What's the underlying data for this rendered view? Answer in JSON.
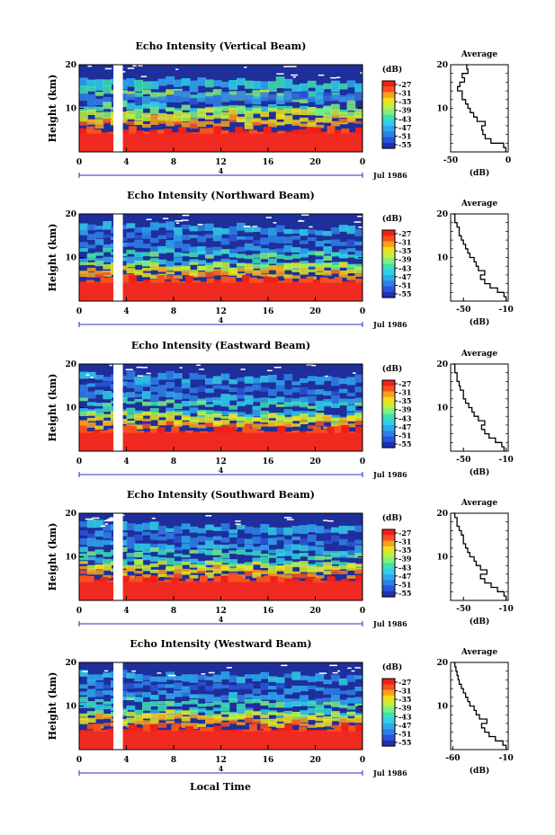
{
  "figure": {
    "x_label": "Local Time",
    "date_label": "Jul 1986",
    "date_marker": "4",
    "cbar_unit": "(dB)",
    "avg_title": "Average",
    "avg_xlabel": "(dB)",
    "height_label": "Height (km)"
  },
  "colors": {
    "scale": [
      "#2030b0",
      "#2a55d8",
      "#2f7fe8",
      "#30a8f0",
      "#30d0e8",
      "#40e0b0",
      "#80f080",
      "#c0f040",
      "#f0e020",
      "#f8a020",
      "#f85020",
      "#f02018"
    ],
    "background_high": "#1e2e9a",
    "surface_red": "#f02a20"
  },
  "chart_data": [
    {
      "type": "heatmap",
      "title": "Echo Intensity (Vertical Beam)",
      "xlabel": "Local Time",
      "ylabel": "Height (km)",
      "xlim": [
        0,
        24
      ],
      "ylim": [
        0,
        20
      ],
      "xticks": [
        "0",
        "4",
        "8",
        "12",
        "16",
        "20",
        "0"
      ],
      "yticks": [
        "10",
        "20"
      ],
      "colorbar": {
        "unit": "(dB)",
        "ticks": [
          "-27",
          "-31",
          "-35",
          "-39",
          "-43",
          "-47",
          "-51",
          "-55"
        ]
      },
      "data_gap_hours": [
        2.9,
        3.7
      ],
      "average_profile": {
        "xticks": [
          "-50",
          "0"
        ],
        "xlim": [
          -50,
          0
        ],
        "yticks": [
          "10",
          "20"
        ],
        "height_km": [
          0,
          1,
          2,
          3,
          4,
          5,
          6,
          7,
          8,
          9,
          10,
          11,
          12,
          13,
          14,
          15,
          16,
          17,
          18,
          19,
          20
        ],
        "db": [
          -2,
          -4,
          -15,
          -20,
          -22,
          -23,
          -20,
          -27,
          -30,
          -33,
          -35,
          -37,
          -40,
          -40,
          -44,
          -42,
          -38,
          -40,
          -35,
          -36,
          -35
        ]
      }
    },
    {
      "type": "heatmap",
      "title": "Echo Intensity (Northward Beam)",
      "xlabel": "Local Time",
      "ylabel": "Height (km)",
      "xlim": [
        0,
        24
      ],
      "ylim": [
        0,
        20
      ],
      "xticks": [
        "0",
        "4",
        "8",
        "12",
        "16",
        "20",
        "0"
      ],
      "yticks": [
        "10",
        "20"
      ],
      "colorbar": {
        "unit": "(dB)",
        "ticks": [
          "-27",
          "-31",
          "-35",
          "-39",
          "-43",
          "-47",
          "-51",
          "-55"
        ]
      },
      "data_gap_hours": [
        2.9,
        3.7
      ],
      "average_profile": {
        "xticks": [
          "-50",
          "-10"
        ],
        "xlim": [
          -62,
          -8
        ],
        "yticks": [
          "10",
          "20"
        ],
        "height_km": [
          0,
          1,
          2,
          3,
          4,
          5,
          6,
          7,
          8,
          9,
          10,
          11,
          12,
          13,
          14,
          15,
          16,
          17,
          18,
          19,
          20
        ],
        "db": [
          -10,
          -12,
          -18,
          -25,
          -30,
          -34,
          -30,
          -36,
          -38,
          -40,
          -44,
          -46,
          -48,
          -50,
          -52,
          -54,
          -54,
          -56,
          -58,
          -58,
          -60
        ]
      }
    },
    {
      "type": "heatmap",
      "title": "Echo Intensity (Eastward Beam)",
      "xlabel": "Local Time",
      "ylabel": "Height (km)",
      "xlim": [
        0,
        24
      ],
      "ylim": [
        0,
        20
      ],
      "xticks": [
        "0",
        "4",
        "8",
        "12",
        "16",
        "20",
        "0"
      ],
      "yticks": [
        "10",
        "20"
      ],
      "colorbar": {
        "unit": "(dB)",
        "ticks": [
          "-27",
          "-31",
          "-35",
          "-39",
          "-43",
          "-47",
          "-51",
          "-55"
        ]
      },
      "data_gap_hours": [
        2.9,
        3.7
      ],
      "average_profile": {
        "xticks": [
          "-50",
          "-10"
        ],
        "xlim": [
          -62,
          -8
        ],
        "yticks": [
          "10",
          "20"
        ],
        "height_km": [
          0,
          1,
          2,
          3,
          4,
          5,
          6,
          7,
          8,
          9,
          10,
          11,
          12,
          13,
          14,
          15,
          16,
          17,
          18,
          19,
          20
        ],
        "db": [
          -12,
          -14,
          -20,
          -26,
          -30,
          -33,
          -30,
          -36,
          -40,
          -42,
          -45,
          -48,
          -50,
          -50,
          -53,
          -54,
          -56,
          -56,
          -58,
          -58,
          -60
        ]
      }
    },
    {
      "type": "heatmap",
      "title": "Echo Intensity (Southward Beam)",
      "xlabel": "Local Time",
      "ylabel": "Height (km)",
      "xlim": [
        0,
        24
      ],
      "ylim": [
        0,
        20
      ],
      "xticks": [
        "0",
        "4",
        "8",
        "12",
        "16",
        "20",
        "0"
      ],
      "yticks": [
        "10",
        "20"
      ],
      "colorbar": {
        "unit": "(dB)",
        "ticks": [
          "-27",
          "-31",
          "-35",
          "-39",
          "-43",
          "-47",
          "-51",
          "-55"
        ]
      },
      "data_gap_hours": [
        2.9,
        3.7
      ],
      "average_profile": {
        "xticks": [
          "-50",
          "-10"
        ],
        "xlim": [
          -62,
          -8
        ],
        "yticks": [
          "10",
          "20"
        ],
        "height_km": [
          0,
          1,
          2,
          3,
          4,
          5,
          6,
          7,
          8,
          9,
          10,
          11,
          12,
          13,
          14,
          15,
          16,
          17,
          18,
          19,
          20
        ],
        "db": [
          -10,
          -12,
          -18,
          -24,
          -30,
          -34,
          -28,
          -34,
          -38,
          -40,
          -44,
          -46,
          -48,
          -50,
          -50,
          -52,
          -54,
          -56,
          -56,
          -58,
          -60
        ]
      }
    },
    {
      "type": "heatmap",
      "title": "Echo Intensity (Westward Beam)",
      "xlabel": "Local Time",
      "ylabel": "Height (km)",
      "xlim": [
        0,
        24
      ],
      "ylim": [
        0,
        20
      ],
      "xticks": [
        "0",
        "4",
        "8",
        "12",
        "16",
        "20",
        "0"
      ],
      "yticks": [
        "10",
        "20"
      ],
      "colorbar": {
        "unit": "(dB)",
        "ticks": [
          "-27",
          "-31",
          "-35",
          "-39",
          "-43",
          "-47",
          "-51",
          "-55"
        ]
      },
      "data_gap_hours": [
        2.9,
        3.7
      ],
      "average_profile": {
        "xticks": [
          "-60",
          "-10"
        ],
        "xlim": [
          -62,
          -8
        ],
        "yticks": [
          "10",
          "20"
        ],
        "height_km": [
          0,
          1,
          2,
          3,
          4,
          5,
          6,
          7,
          8,
          9,
          10,
          11,
          12,
          13,
          14,
          15,
          16,
          17,
          18,
          19,
          20
        ],
        "db": [
          -10,
          -13,
          -20,
          -26,
          -30,
          -33,
          -28,
          -35,
          -38,
          -40,
          -44,
          -46,
          -48,
          -50,
          -52,
          -54,
          -55,
          -56,
          -57,
          -58,
          -60
        ]
      }
    }
  ]
}
